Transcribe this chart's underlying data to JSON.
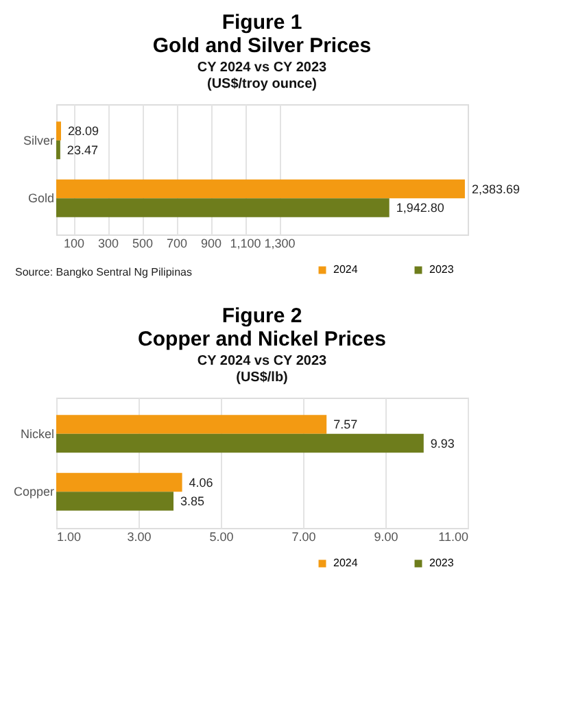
{
  "chart_data": [
    {
      "type": "bar",
      "orientation": "horizontal",
      "title": "Figure 1\nGold and Silver Prices",
      "subtitle": "CY 2024 vs CY 2023\n(US$/troy ounce)",
      "categories": [
        "Silver",
        "Gold"
      ],
      "series": [
        {
          "name": "2024",
          "color": "#f39a12",
          "values": [
            28.09,
            2383.69
          ],
          "value_labels": [
            "28.09",
            "2,383.69"
          ]
        },
        {
          "name": "2023",
          "color": "#6e7d1c",
          "values": [
            23.47,
            1942.8
          ],
          "value_labels": [
            "23.47",
            "1,942.80"
          ]
        }
      ],
      "xlim": [
        0,
        2400
      ],
      "xticks": [
        100,
        300,
        500,
        700,
        900,
        {
          "value": 1100,
          "label": "1,100"
        },
        {
          "value": 1300,
          "label": "1,300"
        }
      ],
      "grid": "x",
      "legend": "bottom right",
      "annotations": [
        "Source:  Bangko Sentral Ng Pilipinas"
      ]
    },
    {
      "type": "bar",
      "orientation": "horizontal",
      "title": "Figure 2\nCopper and Nickel Prices",
      "subtitle": "CY 2024 vs CY 2023\n(US$/lb)",
      "categories": [
        "Nickel",
        "Copper"
      ],
      "series": [
        {
          "name": "2024",
          "color": "#f39a12",
          "values": [
            7.57,
            4.06
          ]
        },
        {
          "name": "2023",
          "color": "#6e7d1c",
          "values": [
            9.93,
            3.85
          ]
        }
      ],
      "data_labels": true,
      "xlim": [
        1,
        11
      ],
      "xticks": [
        {
          "value": 1,
          "label": "1.00"
        },
        {
          "value": 3,
          "label": "3.00"
        },
        {
          "value": 5,
          "label": "5.00"
        },
        {
          "value": 7,
          "label": "7.00"
        },
        {
          "value": 9,
          "label": "9.00"
        },
        {
          "value": 11,
          "label": "11.00"
        }
      ],
      "grid": "x",
      "legend": "bottom right"
    }
  ]
}
